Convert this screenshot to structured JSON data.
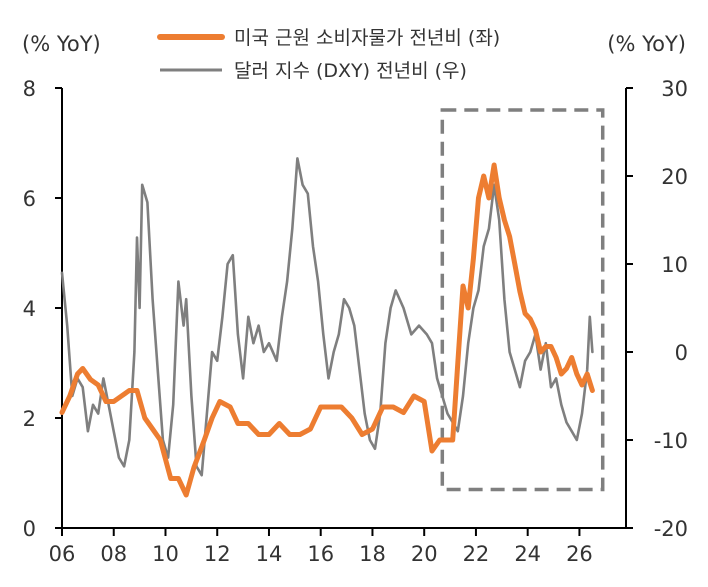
{
  "chart_data": {
    "type": "line",
    "left_axis_unit": "(% YoY)",
    "right_axis_unit": "(% YoY)",
    "x_ticks": [
      "06",
      "08",
      "10",
      "12",
      "14",
      "16",
      "18",
      "20",
      "22",
      "24",
      "26"
    ],
    "x_range": [
      2006,
      2027.8
    ],
    "left_ylim": [
      0,
      8
    ],
    "left_yticks": [
      0,
      2,
      4,
      6,
      8
    ],
    "right_ylim": [
      -20,
      30
    ],
    "right_yticks": [
      -20,
      -10,
      0,
      10,
      20,
      30
    ],
    "grid": false,
    "legend_position": "top-center",
    "series": [
      {
        "name": "미국 근원 소비자물가 전년비 (좌)",
        "axis": "left",
        "color": "#ED7D31",
        "points": [
          [
            2006.0,
            2.1
          ],
          [
            2006.3,
            2.4
          ],
          [
            2006.6,
            2.8
          ],
          [
            2006.8,
            2.9
          ],
          [
            2007.1,
            2.7
          ],
          [
            2007.4,
            2.6
          ],
          [
            2007.7,
            2.3
          ],
          [
            2008.0,
            2.3
          ],
          [
            2008.3,
            2.4
          ],
          [
            2008.6,
            2.5
          ],
          [
            2008.9,
            2.5
          ],
          [
            2009.2,
            2.0
          ],
          [
            2009.5,
            1.8
          ],
          [
            2009.8,
            1.6
          ],
          [
            2010.2,
            0.9
          ],
          [
            2010.5,
            0.9
          ],
          [
            2010.8,
            0.6
          ],
          [
            2011.1,
            1.1
          ],
          [
            2011.5,
            1.6
          ],
          [
            2011.8,
            2.0
          ],
          [
            2012.1,
            2.3
          ],
          [
            2012.5,
            2.2
          ],
          [
            2012.8,
            1.9
          ],
          [
            2013.2,
            1.9
          ],
          [
            2013.6,
            1.7
          ],
          [
            2014.0,
            1.7
          ],
          [
            2014.4,
            1.9
          ],
          [
            2014.8,
            1.7
          ],
          [
            2015.2,
            1.7
          ],
          [
            2015.6,
            1.8
          ],
          [
            2016.0,
            2.2
          ],
          [
            2016.4,
            2.2
          ],
          [
            2016.8,
            2.2
          ],
          [
            2017.2,
            2.0
          ],
          [
            2017.6,
            1.7
          ],
          [
            2018.0,
            1.8
          ],
          [
            2018.4,
            2.2
          ],
          [
            2018.8,
            2.2
          ],
          [
            2019.2,
            2.1
          ],
          [
            2019.6,
            2.4
          ],
          [
            2020.0,
            2.3
          ],
          [
            2020.3,
            1.4
          ],
          [
            2020.6,
            1.6
          ],
          [
            2020.9,
            1.6
          ],
          [
            2021.1,
            1.6
          ],
          [
            2021.3,
            3.0
          ],
          [
            2021.5,
            4.4
          ],
          [
            2021.7,
            4.0
          ],
          [
            2021.9,
            4.9
          ],
          [
            2022.1,
            6.0
          ],
          [
            2022.3,
            6.4
          ],
          [
            2022.5,
            6.0
          ],
          [
            2022.7,
            6.6
          ],
          [
            2022.9,
            6.0
          ],
          [
            2023.1,
            5.6
          ],
          [
            2023.3,
            5.3
          ],
          [
            2023.5,
            4.8
          ],
          [
            2023.7,
            4.3
          ],
          [
            2023.9,
            3.9
          ],
          [
            2024.1,
            3.8
          ],
          [
            2024.3,
            3.6
          ],
          [
            2024.5,
            3.2
          ],
          [
            2024.7,
            3.3
          ],
          [
            2024.9,
            3.3
          ],
          [
            2025.1,
            3.1
          ],
          [
            2025.3,
            2.8
          ],
          [
            2025.5,
            2.9
          ],
          [
            2025.7,
            3.1
          ],
          [
            2025.9,
            2.8
          ],
          [
            2026.1,
            2.6
          ],
          [
            2026.3,
            2.8
          ],
          [
            2026.5,
            2.5
          ]
        ]
      },
      {
        "name": "달러 지수 (DXY) 전년비 (우)",
        "axis": "right",
        "color": "#7F7F7F",
        "points": [
          [
            2006.0,
            9.0
          ],
          [
            2006.2,
            3.0
          ],
          [
            2006.4,
            -5.0
          ],
          [
            2006.6,
            -3.0
          ],
          [
            2006.8,
            -4.0
          ],
          [
            2007.0,
            -9.0
          ],
          [
            2007.2,
            -6.0
          ],
          [
            2007.4,
            -7.0
          ],
          [
            2007.6,
            -3.0
          ],
          [
            2007.8,
            -6.0
          ],
          [
            2008.0,
            -9.0
          ],
          [
            2008.2,
            -12.0
          ],
          [
            2008.4,
            -13.0
          ],
          [
            2008.6,
            -10.0
          ],
          [
            2008.8,
            0.0
          ],
          [
            2008.9,
            13.0
          ],
          [
            2009.0,
            5.0
          ],
          [
            2009.1,
            19.0
          ],
          [
            2009.3,
            17.0
          ],
          [
            2009.5,
            6.0
          ],
          [
            2009.7,
            -2.0
          ],
          [
            2009.9,
            -10.0
          ],
          [
            2010.1,
            -12.0
          ],
          [
            2010.3,
            -6.0
          ],
          [
            2010.5,
            8.0
          ],
          [
            2010.7,
            3.0
          ],
          [
            2010.8,
            6.0
          ],
          [
            2011.0,
            -5.0
          ],
          [
            2011.2,
            -13.0
          ],
          [
            2011.4,
            -14.0
          ],
          [
            2011.6,
            -7.0
          ],
          [
            2011.8,
            0.0
          ],
          [
            2012.0,
            -1.0
          ],
          [
            2012.2,
            4.0
          ],
          [
            2012.4,
            10.0
          ],
          [
            2012.6,
            11.0
          ],
          [
            2012.8,
            2.0
          ],
          [
            2013.0,
            -3.0
          ],
          [
            2013.2,
            4.0
          ],
          [
            2013.4,
            1.0
          ],
          [
            2013.6,
            3.0
          ],
          [
            2013.8,
            0.0
          ],
          [
            2014.0,
            1.0
          ],
          [
            2014.3,
            -1.0
          ],
          [
            2014.5,
            4.0
          ],
          [
            2014.7,
            8.0
          ],
          [
            2014.9,
            14.0
          ],
          [
            2015.1,
            22.0
          ],
          [
            2015.3,
            19.0
          ],
          [
            2015.5,
            18.0
          ],
          [
            2015.7,
            12.0
          ],
          [
            2015.9,
            8.0
          ],
          [
            2016.1,
            2.0
          ],
          [
            2016.3,
            -3.0
          ],
          [
            2016.5,
            0.0
          ],
          [
            2016.7,
            2.0
          ],
          [
            2016.9,
            6.0
          ],
          [
            2017.1,
            5.0
          ],
          [
            2017.3,
            3.0
          ],
          [
            2017.5,
            -2.0
          ],
          [
            2017.7,
            -7.0
          ],
          [
            2017.9,
            -10.0
          ],
          [
            2018.1,
            -11.0
          ],
          [
            2018.3,
            -7.0
          ],
          [
            2018.5,
            1.0
          ],
          [
            2018.7,
            5.0
          ],
          [
            2018.9,
            7.0
          ],
          [
            2019.2,
            5.0
          ],
          [
            2019.5,
            2.0
          ],
          [
            2019.8,
            3.0
          ],
          [
            2020.1,
            2.0
          ],
          [
            2020.3,
            1.0
          ],
          [
            2020.5,
            -3.0
          ],
          [
            2020.7,
            -5.0
          ],
          [
            2020.9,
            -7.0
          ],
          [
            2021.1,
            -8.0
          ],
          [
            2021.3,
            -9.0
          ],
          [
            2021.5,
            -5.0
          ],
          [
            2021.7,
            1.0
          ],
          [
            2021.9,
            5.0
          ],
          [
            2022.1,
            7.0
          ],
          [
            2022.3,
            12.0
          ],
          [
            2022.5,
            14.0
          ],
          [
            2022.7,
            19.0
          ],
          [
            2022.9,
            15.0
          ],
          [
            2023.1,
            6.0
          ],
          [
            2023.3,
            0.0
          ],
          [
            2023.5,
            -2.0
          ],
          [
            2023.7,
            -4.0
          ],
          [
            2023.9,
            -1.0
          ],
          [
            2024.1,
            0.0
          ],
          [
            2024.3,
            2.0
          ],
          [
            2024.5,
            -2.0
          ],
          [
            2024.7,
            1.0
          ],
          [
            2024.9,
            -4.0
          ],
          [
            2025.1,
            -3.0
          ],
          [
            2025.3,
            -6.0
          ],
          [
            2025.5,
            -8.0
          ],
          [
            2025.7,
            -9.0
          ],
          [
            2025.9,
            -10.0
          ],
          [
            2026.1,
            -7.0
          ],
          [
            2026.3,
            -2.0
          ],
          [
            2026.4,
            4.0
          ],
          [
            2026.5,
            0.0
          ]
        ]
      }
    ],
    "highlight_box": {
      "x_range": [
        2020.7,
        2026.9
      ],
      "y_range_left": [
        0.7,
        7.6
      ],
      "style": "dashed"
    }
  }
}
